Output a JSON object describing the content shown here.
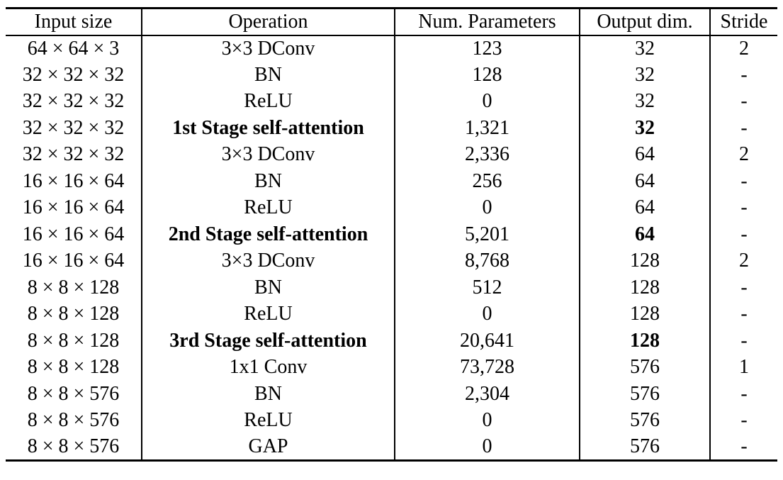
{
  "table": {
    "columns": [
      "Input size",
      "Operation",
      "Num. Parameters",
      "Output dim.",
      "Stride"
    ],
    "field_order": [
      "input_size",
      "operation",
      "num_parameters",
      "output_dim",
      "stride"
    ],
    "rows": [
      {
        "input_size": "64 × 64 × 3",
        "operation": "3×3 DConv",
        "num_parameters": "123",
        "output_dim": "32",
        "stride": "2",
        "emphasis": false
      },
      {
        "input_size": "32 × 32 × 32",
        "operation": "BN",
        "num_parameters": "128",
        "output_dim": "32",
        "stride": "-",
        "emphasis": false
      },
      {
        "input_size": "32 × 32 × 32",
        "operation": "ReLU",
        "num_parameters": "0",
        "output_dim": "32",
        "stride": "-",
        "emphasis": false
      },
      {
        "input_size": "32 × 32 × 32",
        "operation": "1st Stage self-attention",
        "num_parameters": "1,321",
        "output_dim": "32",
        "stride": "-",
        "emphasis": true
      },
      {
        "input_size": "32 × 32 × 32",
        "operation": "3×3 DConv",
        "num_parameters": "2,336",
        "output_dim": "64",
        "stride": "2",
        "emphasis": false
      },
      {
        "input_size": "16 × 16 × 64",
        "operation": "BN",
        "num_parameters": "256",
        "output_dim": "64",
        "stride": "-",
        "emphasis": false
      },
      {
        "input_size": "16 × 16 × 64",
        "operation": "ReLU",
        "num_parameters": "0",
        "output_dim": "64",
        "stride": "-",
        "emphasis": false
      },
      {
        "input_size": "16 × 16 × 64",
        "operation": "2nd Stage self-attention",
        "num_parameters": "5,201",
        "output_dim": "64",
        "stride": "-",
        "emphasis": true
      },
      {
        "input_size": "16 × 16 × 64",
        "operation": "3×3 DConv",
        "num_parameters": "8,768",
        "output_dim": "128",
        "stride": "2",
        "emphasis": false
      },
      {
        "input_size": "8 × 8 × 128",
        "operation": "BN",
        "num_parameters": "512",
        "output_dim": "128",
        "stride": "-",
        "emphasis": false
      },
      {
        "input_size": "8 × 8 × 128",
        "operation": "ReLU",
        "num_parameters": "0",
        "output_dim": "128",
        "stride": "-",
        "emphasis": false
      },
      {
        "input_size": "8 × 8 × 128",
        "operation": "3rd Stage self-attention",
        "num_parameters": "20,641",
        "output_dim": "128",
        "stride": "-",
        "emphasis": true
      },
      {
        "input_size": "8 × 8 × 128",
        "operation": "1x1 Conv",
        "num_parameters": "73,728",
        "output_dim": "576",
        "stride": "1",
        "emphasis": false
      },
      {
        "input_size": "8 × 8 × 576",
        "operation": "BN",
        "num_parameters": "2,304",
        "output_dim": "576",
        "stride": "-",
        "emphasis": false
      },
      {
        "input_size": "8 × 8 × 576",
        "operation": "ReLU",
        "num_parameters": "0",
        "output_dim": "576",
        "stride": "-",
        "emphasis": false
      },
      {
        "input_size": "8 × 8 × 576",
        "operation": "GAP",
        "num_parameters": "0",
        "output_dim": "576",
        "stride": "-",
        "emphasis": false
      }
    ],
    "emphasized_fields": [
      "operation",
      "output_dim"
    ],
    "colors": {
      "text": "#000000",
      "background": "#ffffff",
      "rule": "#000000"
    }
  }
}
